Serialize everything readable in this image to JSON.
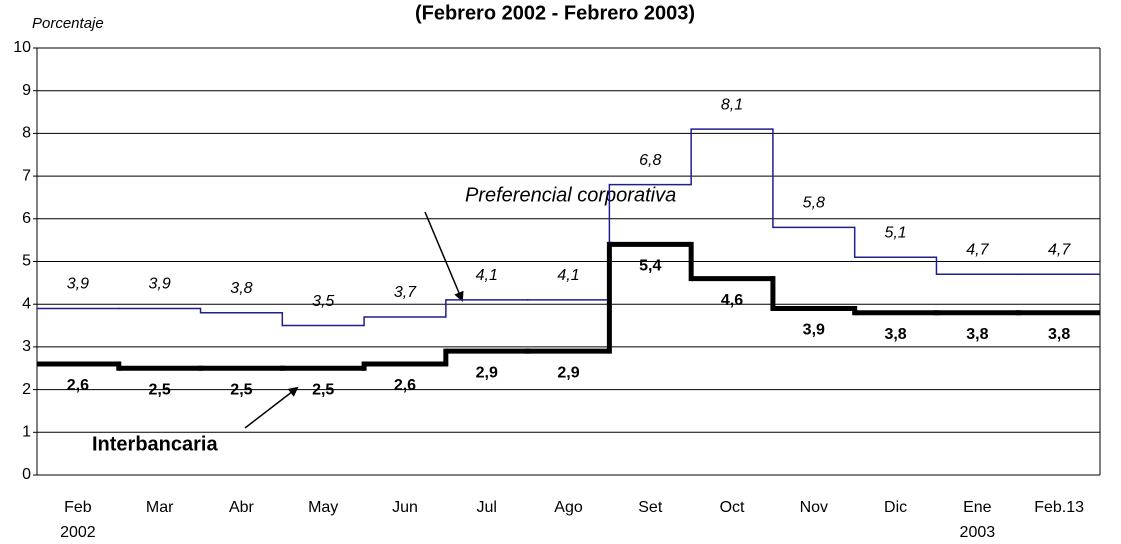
{
  "chart_data": {
    "type": "step",
    "title": "(Febrero 2002 - Febrero 2003)",
    "y_label": "Porcentaje",
    "categories": [
      "Feb",
      "Mar",
      "Abr",
      "May",
      "Jun",
      "Jul",
      "Ago",
      "Set",
      "Oct",
      "Nov",
      "Dic",
      "Ene",
      "Feb.13"
    ],
    "category_years": [
      "2002",
      null,
      null,
      null,
      null,
      null,
      null,
      null,
      null,
      null,
      null,
      "2003",
      null
    ],
    "ylim": [
      0,
      10
    ],
    "yticks": [
      0,
      1,
      2,
      3,
      4,
      5,
      6,
      7,
      8,
      9,
      10
    ],
    "grid": true,
    "series": [
      {
        "name": "Preferencial corporativa",
        "color": "#1f1f8f",
        "values": [
          3.9,
          3.9,
          3.8,
          3.5,
          3.7,
          4.1,
          4.1,
          6.8,
          8.1,
          5.8,
          5.1,
          4.7,
          4.7
        ],
        "value_labels": [
          "3,9",
          "3,9",
          "3,8",
          "3,5",
          "3,7",
          "4,1",
          "4,1",
          "6,8",
          "8,1",
          "5,8",
          "5,1",
          "4,7",
          "4,7"
        ]
      },
      {
        "name": "Interbancaria",
        "color": "#000000",
        "values": [
          2.6,
          2.5,
          2.5,
          2.5,
          2.6,
          2.9,
          2.9,
          5.4,
          4.6,
          3.9,
          3.8,
          3.8,
          3.8
        ],
        "value_labels": [
          "2,6",
          "2,5",
          "2,5",
          "2,5",
          "2,6",
          "2,9",
          "2,9",
          "5,4",
          "4,6",
          "3,9",
          "3,8",
          "3,8",
          "3,8"
        ]
      }
    ]
  }
}
